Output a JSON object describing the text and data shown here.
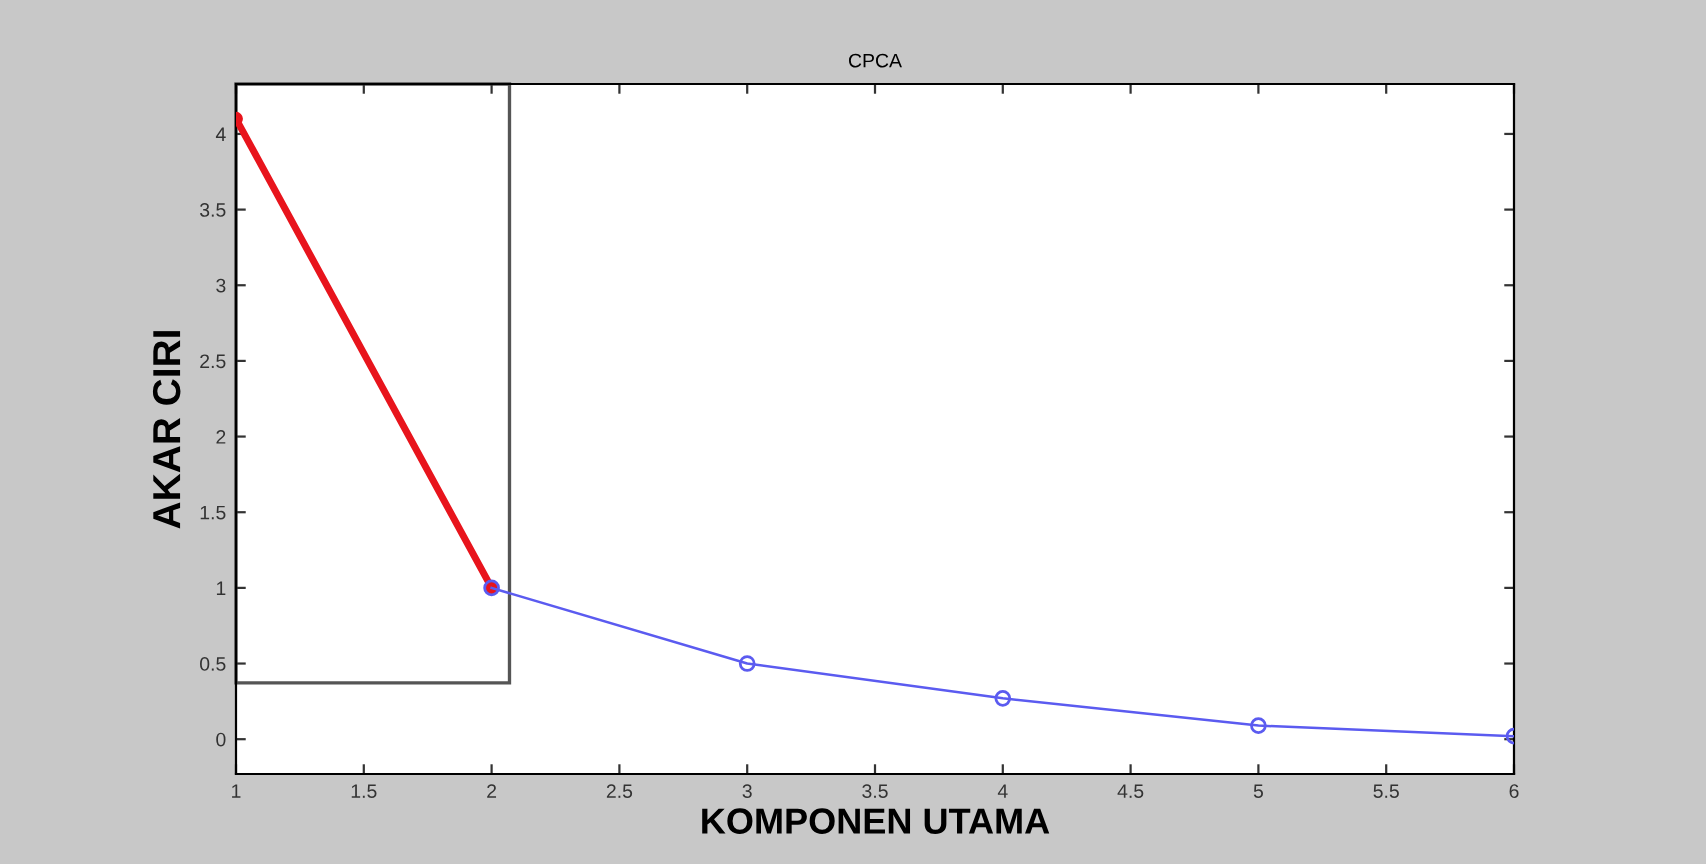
{
  "chart_data": {
    "type": "line",
    "title": "CPCA",
    "xlabel": "KOMPONEN UTAMA",
    "ylabel": "AKAR CIRI",
    "series": [
      {
        "color": "#e8141c",
        "x": [
          1,
          2
        ],
        "values": [
          4.1,
          1.0
        ],
        "marker": "circle"
      },
      {
        "color": "#5b5bf0",
        "x": [
          2,
          3,
          4,
          5,
          6
        ],
        "values": [
          1.0,
          0.5,
          0.27,
          0.09,
          0.02
        ],
        "marker": "circle"
      }
    ],
    "xlim": [
      1,
      6
    ],
    "xticks": [
      1,
      1.5,
      2,
      2.5,
      3,
      3.5,
      4,
      4.5,
      5,
      5.5,
      6
    ],
    "ylim": [
      -0.23,
      4.33
    ],
    "yticks": [
      0,
      0.5,
      1,
      1.5,
      2,
      2.5,
      3,
      3.5,
      4
    ],
    "grid": false,
    "legend": false,
    "line_style": "solid"
  }
}
